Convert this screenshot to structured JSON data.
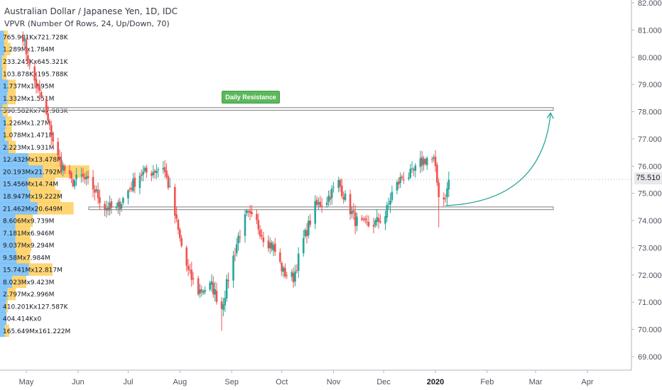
{
  "header": {
    "title": "Australian Dollar / Japanese Yen, 1D, IDC",
    "indicator": "VPVR (Number Of Rows, 24, Up/Down, 70)"
  },
  "annotation": {
    "label": "Daily Resistance"
  },
  "last_price": "75.510",
  "colors": {
    "up": "#26a69a",
    "down": "#ef5350",
    "vp_up": "#2196f3",
    "vp_down": "#ffb300",
    "arrow": "#26a69a",
    "label_bg": "#5cb85c"
  },
  "chart_data": {
    "type": "candlestick",
    "y_ticks": [
      "82.000",
      "81.000",
      "80.000",
      "79.000",
      "78.000",
      "77.000",
      "76.000",
      "75.000",
      "74.000",
      "73.000",
      "72.000",
      "71.000",
      "70.000",
      "69.000"
    ],
    "ylim": [
      68.5,
      82.1
    ],
    "x_ticks": [
      "May",
      "Jun",
      "Jul",
      "Aug",
      "Sep",
      "Oct",
      "Nov",
      "Dec",
      "2020",
      "Feb",
      "Mar",
      "Apr"
    ],
    "daily_resistance": [
      78.05,
      78.15
    ],
    "support_zone": [
      74.4,
      74.5
    ],
    "projection": {
      "from_date": "2020-01-07",
      "from_price": 74.55,
      "to_date": "2020-03-10",
      "to_price": 77.95
    },
    "volume_profile": [
      {
        "label": "165.649Mx161.222M",
        "price": 69.95,
        "total": 0.7,
        "up_share": 0.51
      },
      {
        "label": "404.414Kx0",
        "price": 70.4,
        "total": 0.5,
        "up_share": 1.0
      },
      {
        "label": "410.201Kx127.587K",
        "price": 70.85,
        "total": 0.6,
        "up_share": 0.76
      },
      {
        "label": "2.797Mx2.996M",
        "price": 71.3,
        "total": 1.2,
        "up_share": 0.48
      },
      {
        "label": "8.023Mx9.423M",
        "price": 71.75,
        "total": 2.0,
        "up_share": 0.46
      },
      {
        "label": "15.741Mx12.817M",
        "price": 72.2,
        "total": 4.0,
        "up_share": 0.55
      },
      {
        "label": "9.58Mx7.984M",
        "price": 72.65,
        "total": 2.3,
        "up_share": 0.55
      },
      {
        "label": "9.037Mx9.294M",
        "price": 73.1,
        "total": 2.4,
        "up_share": 0.49
      },
      {
        "label": "7.181Mx6.946M",
        "price": 73.55,
        "total": 2.3,
        "up_share": 0.51
      },
      {
        "label": "8.606Mx9.739M",
        "price": 74.0,
        "total": 2.5,
        "up_share": 0.47
      },
      {
        "label": "21.462Mx20.649M",
        "price": 74.45,
        "total": 5.6,
        "up_share": 0.51
      },
      {
        "label": "18.947Mx19.222M",
        "price": 74.9,
        "total": 4.6,
        "up_share": 0.5
      },
      {
        "label": "15.456Mx14.74M",
        "price": 75.35,
        "total": 4.2,
        "up_share": 0.51
      },
      {
        "label": "20.193Mx21.792M",
        "price": 75.8,
        "total": 6.8,
        "up_share": 0.48
      },
      {
        "label": "12.432Mx13.478M",
        "price": 76.25,
        "total": 4.5,
        "up_share": 0.48
      },
      {
        "label": "2.223Mx1.931M",
        "price": 76.7,
        "total": 1.2,
        "up_share": 0.54
      },
      {
        "label": "1.078Mx1.471M",
        "price": 77.15,
        "total": 0.9,
        "up_share": 0.42
      },
      {
        "label": "1.226Mx1.27M",
        "price": 77.6,
        "total": 0.9,
        "up_share": 0.49
      },
      {
        "label": "390.582Kx747.983K",
        "price": 78.05,
        "total": 0.6,
        "up_share": 0.34
      },
      {
        "label": "1.332Mx1.551M",
        "price": 78.5,
        "total": 1.2,
        "up_share": 0.46
      },
      {
        "label": "1.737Mx1.595M",
        "price": 78.95,
        "total": 1.2,
        "up_share": 0.52
      },
      {
        "label": "103.878Kx195.788K",
        "price": 79.4,
        "total": 0.5,
        "up_share": 0.35
      },
      {
        "label": "233.245Kx645.321K",
        "price": 79.85,
        "total": 0.5,
        "up_share": 0.27
      },
      {
        "label": "1.289Mx1.784M",
        "price": 80.3,
        "total": 0.8,
        "up_share": 0.42
      },
      {
        "label": "765.901Kx721.728K",
        "price": 80.75,
        "total": 0.6,
        "up_share": 0.51
      }
    ],
    "anchors": [
      [
        "2019-04-29",
        80.8
      ],
      [
        "2019-05-03",
        79.6
      ],
      [
        "2019-05-10",
        78.5
      ],
      [
        "2019-05-15",
        77.4
      ],
      [
        "2019-05-20",
        76.3
      ],
      [
        "2019-05-28",
        75.4
      ],
      [
        "2019-06-03",
        75.6
      ],
      [
        "2019-06-10",
        75.2
      ],
      [
        "2019-06-17",
        74.5
      ],
      [
        "2019-06-24",
        74.4
      ],
      [
        "2019-07-01",
        75.1
      ],
      [
        "2019-07-08",
        75.7
      ],
      [
        "2019-07-15",
        75.8
      ],
      [
        "2019-07-22",
        76.0
      ],
      [
        "2019-07-26",
        75.1
      ],
      [
        "2019-08-01",
        73.3
      ],
      [
        "2019-08-06",
        72.1
      ],
      [
        "2019-08-12",
        71.4
      ],
      [
        "2019-08-20",
        71.6
      ],
      [
        "2019-08-26",
        70.8
      ],
      [
        "2019-08-30",
        71.9
      ],
      [
        "2019-09-05",
        73.4
      ],
      [
        "2019-09-10",
        74.2
      ],
      [
        "2019-09-16",
        73.9
      ],
      [
        "2019-09-20",
        73.4
      ],
      [
        "2019-09-26",
        73.0
      ],
      [
        "2019-10-02",
        72.1
      ],
      [
        "2019-10-08",
        71.9
      ],
      [
        "2019-10-14",
        73.3
      ],
      [
        "2019-10-21",
        74.5
      ],
      [
        "2019-10-28",
        74.8
      ],
      [
        "2019-11-04",
        75.4
      ],
      [
        "2019-11-08",
        74.8
      ],
      [
        "2019-11-14",
        74.0
      ],
      [
        "2019-11-20",
        73.8
      ],
      [
        "2019-11-26",
        73.9
      ],
      [
        "2019-12-02",
        74.2
      ],
      [
        "2019-12-06",
        75.0
      ],
      [
        "2019-12-12",
        75.6
      ],
      [
        "2019-12-18",
        75.7
      ],
      [
        "2019-12-23",
        76.1
      ],
      [
        "2019-12-27",
        76.3
      ],
      [
        "2019-12-31",
        76.2
      ],
      [
        "2020-01-03",
        75.0
      ],
      [
        "2020-01-06",
        74.8
      ],
      [
        "2020-01-08",
        75.1
      ],
      [
        "2020-01-09",
        75.5
      ]
    ]
  }
}
